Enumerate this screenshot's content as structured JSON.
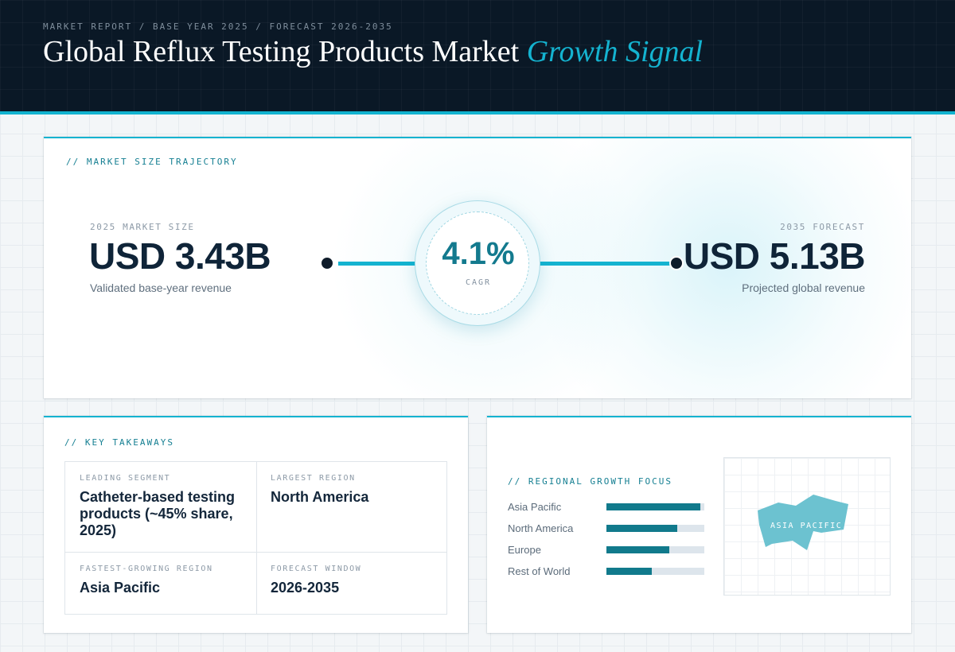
{
  "header": {
    "eyebrow": "MARKET REPORT / BASE YEAR 2025 / FORECAST 2026-2035",
    "title_main": "Global Reflux Testing Products Market",
    "title_accent": "Growth Signal"
  },
  "trajectory": {
    "section_label": "// MARKET SIZE TRAJECTORY",
    "start": {
      "label": "2025 MARKET SIZE",
      "value": "USD 3.43B",
      "caption": "Validated base-year revenue"
    },
    "cagr": {
      "value": "4.1%",
      "label": "CAGR"
    },
    "end": {
      "label": "2035 FORECAST",
      "value": "USD 5.13B",
      "caption": "Projected global revenue"
    }
  },
  "takeaways": {
    "section_label": "// KEY TAKEAWAYS",
    "items": [
      {
        "label": "LEADING SEGMENT",
        "value": "Catheter-based testing products (~45% share, 2025)"
      },
      {
        "label": "LARGEST REGION",
        "value": "North America"
      },
      {
        "label": "FASTEST-GROWING REGION",
        "value": "Asia Pacific"
      },
      {
        "label": "FORECAST WINDOW",
        "value": "2026-2035"
      }
    ]
  },
  "regional": {
    "section_label": "// REGIONAL GROWTH FOCUS",
    "bars": [
      {
        "name": "Asia Pacific",
        "level": 0.96
      },
      {
        "name": "North America",
        "level": 0.72
      },
      {
        "name": "Europe",
        "level": 0.64
      },
      {
        "name": "Rest of World",
        "level": 0.46
      }
    ],
    "map_label": "ASIA PACIFIC",
    "map_color": "#6cc2d0"
  },
  "colors": {
    "accent": "#14b3d0",
    "header_bg": "#0a1826",
    "bar_fill": "#117a8c"
  }
}
